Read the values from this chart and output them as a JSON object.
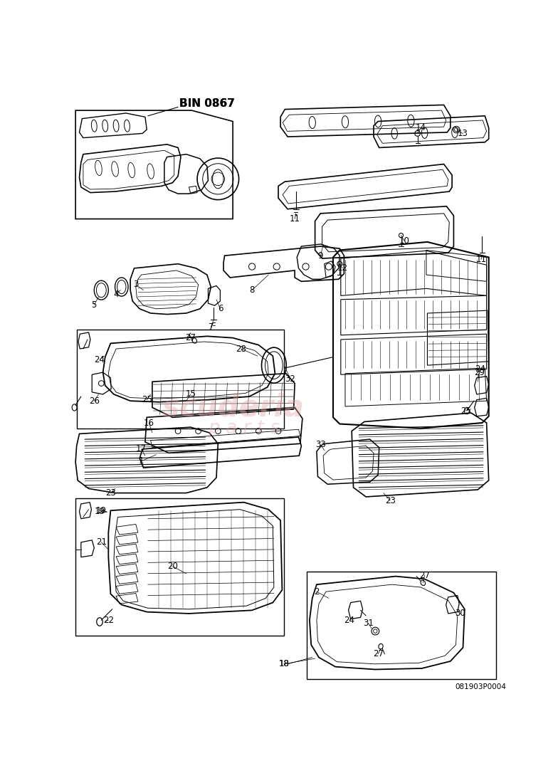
{
  "title": "BIN 0867",
  "part_number": "081903P0004",
  "bg": "#ffffff",
  "lc": "#000000",
  "watermark1": "scuderia",
  "watermark2": "p a r t s",
  "wc": "#e0a0a8",
  "figsize": [
    7.84,
    11.0
  ],
  "dpi": 100
}
